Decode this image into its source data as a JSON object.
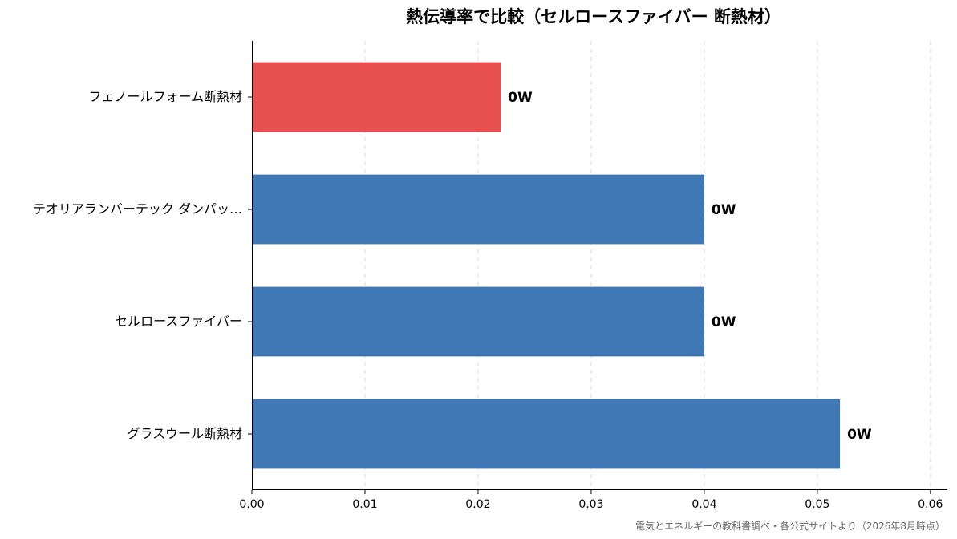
{
  "chart_data": {
    "type": "bar",
    "orientation": "horizontal",
    "title": "熱伝導率で比較（セルロースファイバー 断熱材）",
    "categories": [
      "フェノールフォーム断熱材",
      "テオリアランバーテック ダンパッ…",
      "セルロースファイバー",
      "グラスウール断熱材"
    ],
    "values": [
      0.022,
      0.04,
      0.04,
      0.052
    ],
    "data_labels": [
      "0W",
      "0W",
      "0W",
      "0W"
    ],
    "bar_colors": [
      "#e85050",
      "#3f78b5",
      "#3f78b5",
      "#3f78b5"
    ],
    "xlim": [
      0,
      0.0615
    ],
    "xticks": [
      0,
      0.01,
      0.02,
      0.03,
      0.04,
      0.05,
      0.06
    ],
    "xtick_labels": [
      "0.00",
      "0.01",
      "0.02",
      "0.03",
      "0.04",
      "0.05",
      "0.06"
    ],
    "xlabel": "",
    "ylabel": "",
    "grid": "x-dashed",
    "source_note": "電気とエネルギーの教科書調べ・各公式サイトより（2026年8月時点）"
  }
}
